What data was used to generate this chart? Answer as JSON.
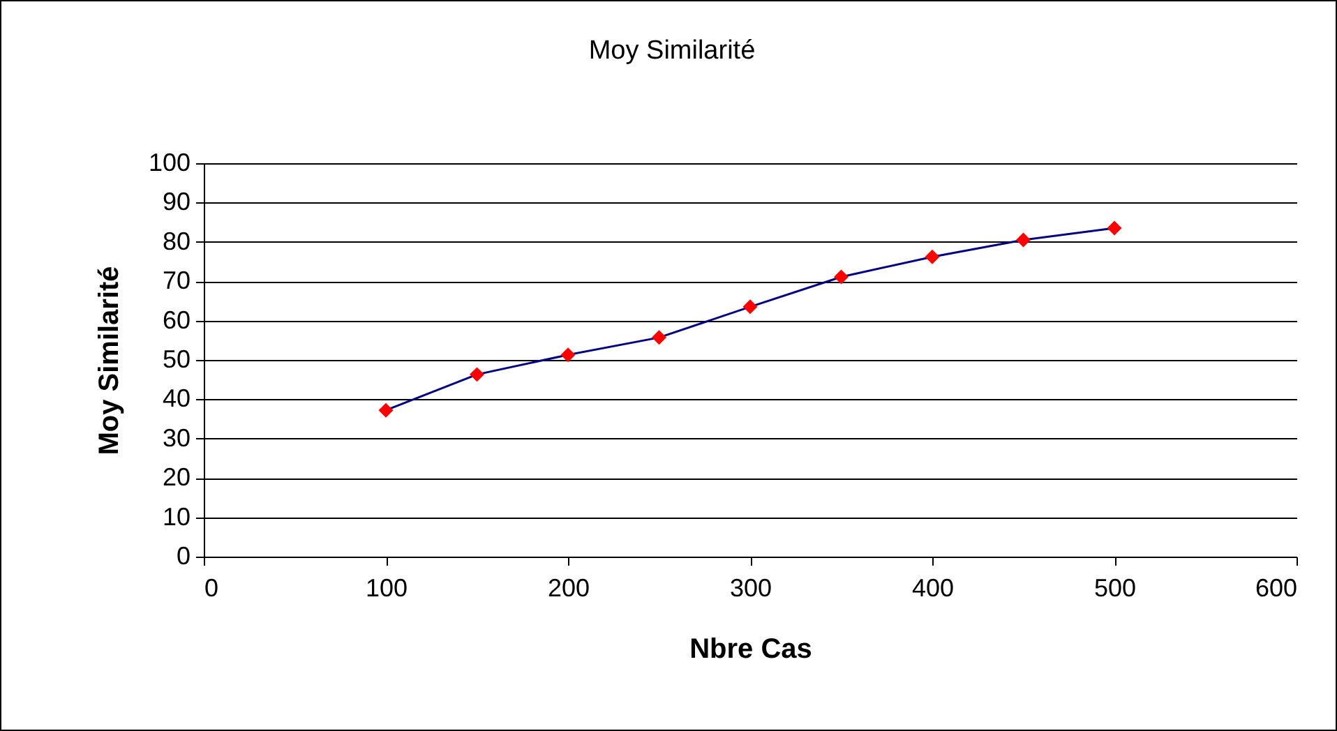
{
  "chart_data": {
    "type": "line",
    "title": "Moy Similarité",
    "xlabel": "Nbre Cas",
    "ylabel": "Moy Similarité",
    "x": [
      100,
      150,
      200,
      250,
      300,
      350,
      400,
      450,
      500
    ],
    "series": [
      {
        "color": "#000080",
        "values": [
          37.2,
          46.3,
          51.3,
          55.7,
          63.5,
          71.1,
          76.2,
          80.5,
          83.5
        ]
      }
    ],
    "marker": "diamond",
    "xlim": [
      0,
      600
    ],
    "xticks": [
      0,
      100,
      200,
      300,
      400,
      500,
      600
    ],
    "ylim": [
      0,
      100
    ],
    "yticks": [
      0,
      10,
      20,
      30,
      40,
      50,
      60,
      70,
      80,
      90,
      100
    ],
    "grid": "y"
  }
}
